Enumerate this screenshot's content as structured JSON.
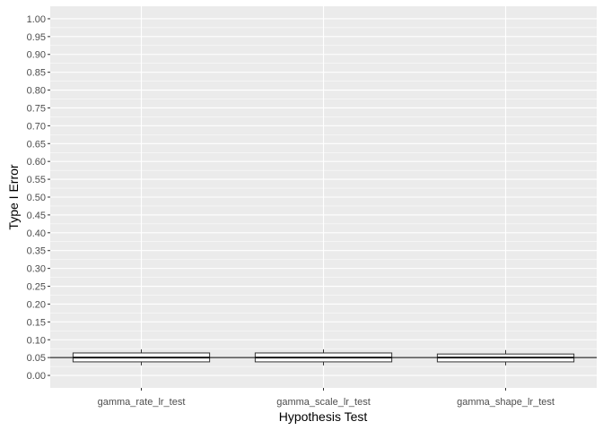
{
  "chart_data": {
    "type": "box",
    "title": "",
    "xlabel": "Hypothesis Test",
    "ylabel": "Type I Error",
    "ylim": [
      -0.035,
      1.035
    ],
    "yticks": [
      0.0,
      0.05,
      0.1,
      0.15,
      0.2,
      0.25,
      0.3,
      0.35,
      0.4,
      0.45,
      0.5,
      0.55,
      0.6,
      0.65,
      0.7,
      0.75,
      0.8,
      0.85,
      0.9,
      0.95,
      1.0
    ],
    "ytick_labels": [
      "0.00",
      "0.05",
      "0.10",
      "0.15",
      "0.20",
      "0.25",
      "0.30",
      "0.35",
      "0.40",
      "0.45",
      "0.50",
      "0.55",
      "0.60",
      "0.65",
      "0.70",
      "0.75",
      "0.80",
      "0.85",
      "0.90",
      "0.95",
      "1.00"
    ],
    "categories": [
      "gamma_rate_lr_test",
      "gamma_scale_lr_test",
      "gamma_shape_lr_test"
    ],
    "boxes": [
      {
        "category": "gamma_rate_lr_test",
        "whisker_low": 0.028,
        "q1": 0.038,
        "median": 0.05,
        "q3": 0.063,
        "whisker_high": 0.073
      },
      {
        "category": "gamma_scale_lr_test",
        "whisker_low": 0.028,
        "q1": 0.038,
        "median": 0.05,
        "q3": 0.063,
        "whisker_high": 0.073
      },
      {
        "category": "gamma_shape_lr_test",
        "whisker_low": 0.028,
        "q1": 0.038,
        "median": 0.05,
        "q3": 0.06,
        "whisker_high": 0.071
      }
    ],
    "reference_line": 0.05,
    "grid": true,
    "colors": {
      "panel": "#ebebeb",
      "grid": "#ffffff",
      "box_fill": "#ffffff",
      "box_stroke": "#333333",
      "reference_line": "#000000",
      "tick_text": "#4d4d4d",
      "title_text": "#000000"
    }
  }
}
